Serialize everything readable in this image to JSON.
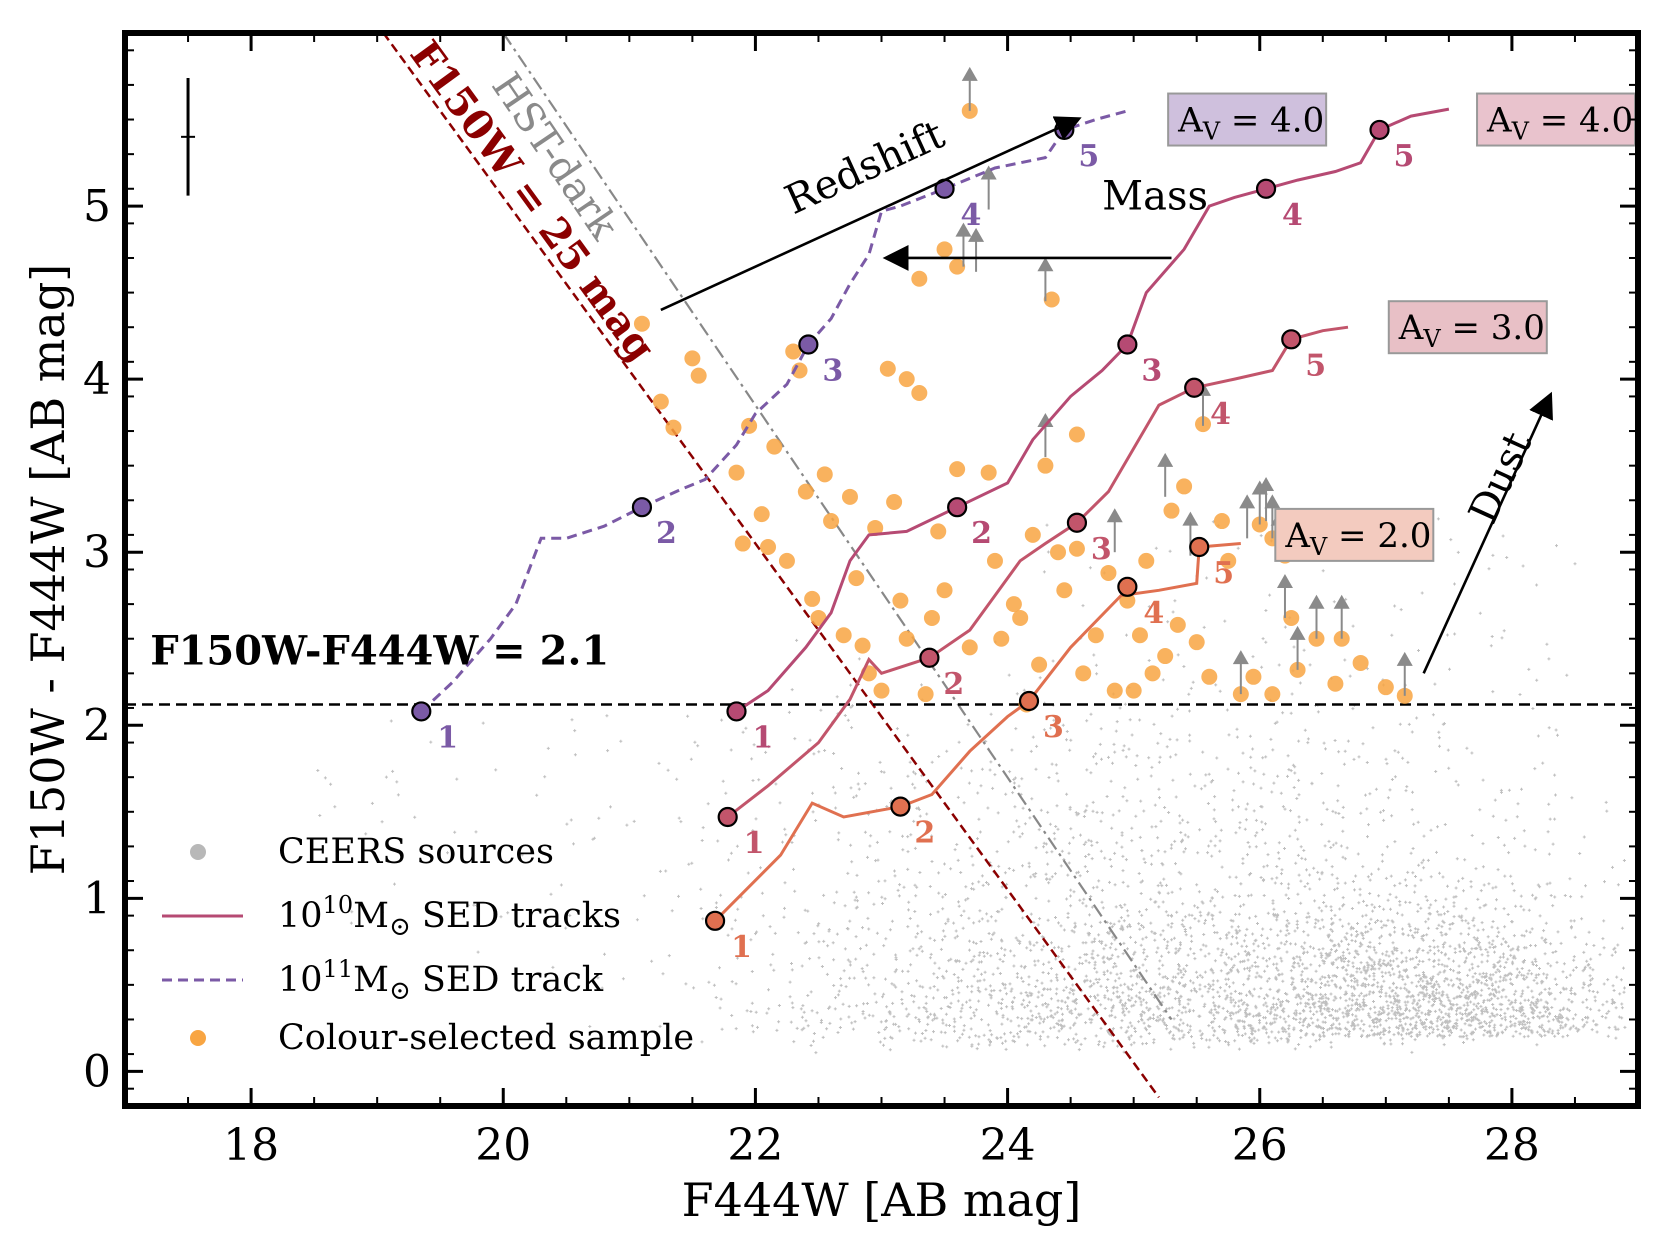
{
  "chart_data": {
    "type": "scatter",
    "xlabel": "F444W [AB mag]",
    "ylabel": "F150W - F444W [AB mag]",
    "xlim": [
      17,
      29
    ],
    "ylim": [
      -0.2,
      6.0
    ],
    "x_ticks": [
      18,
      20,
      22,
      24,
      26,
      28
    ],
    "y_ticks": [
      0,
      1,
      2,
      3,
      4,
      5
    ],
    "x_tick_labels": [
      "18",
      "20",
      "22",
      "24",
      "26",
      "28"
    ],
    "y_tick_labels": [
      "0",
      "1",
      "2",
      "3",
      "4",
      "5"
    ],
    "grid": false,
    "legend_position": "bottom-left",
    "legend": [
      {
        "label": "CEERS sources",
        "symbol": "grey-dot"
      },
      {
        "label_main": "10",
        "label_sup": "10",
        "label_rest": "M",
        "label_sub": "⊙",
        "label_tail": " SED tracks",
        "symbol": "solid-line"
      },
      {
        "label_main": "10",
        "label_sup": "11",
        "label_rest": "M",
        "label_sub": "⊙",
        "label_tail": " SED track",
        "symbol": "dashed-line"
      },
      {
        "label": "Colour-selected sample",
        "symbol": "orange-dot"
      }
    ],
    "colour_cut": {
      "y": 2.12,
      "label": "F150W-F444W = 2.1"
    },
    "f150_limit_line": {
      "label": "F150W = 25 mag",
      "points": [
        [
          19.05,
          6.0
        ],
        [
          25.2,
          -0.15
        ]
      ],
      "color": "#8b0000"
    },
    "hst_dark_line": {
      "label": "HST-dark",
      "points": [
        [
          20.0,
          6.0
        ],
        [
          25.3,
          0.3
        ]
      ],
      "color": "#888888"
    },
    "error_bar": {
      "x": 17.5,
      "y": 5.4,
      "yerr": 0.34
    },
    "arrows": [
      {
        "label": "Redshift",
        "from": [
          21.25,
          4.4
        ],
        "to": [
          24.55,
          5.5
        ]
      },
      {
        "label": "Mass",
        "from": [
          25.3,
          4.7
        ],
        "to": [
          23.05,
          4.7
        ]
      },
      {
        "label": "Dust",
        "from": [
          27.3,
          2.3
        ],
        "to": [
          28.3,
          3.9
        ]
      }
    ],
    "tracks": [
      {
        "mass": "1e11",
        "av_label": "A_V = 4.0",
        "color": "#7b5aa6",
        "dash": true,
        "line": [
          [
            19.35,
            2.08
          ],
          [
            19.6,
            2.25
          ],
          [
            19.9,
            2.5
          ],
          [
            20.1,
            2.7
          ],
          [
            20.3,
            3.08
          ],
          [
            20.5,
            3.08
          ],
          [
            20.8,
            3.15
          ],
          [
            21.1,
            3.26
          ],
          [
            21.4,
            3.36
          ],
          [
            21.6,
            3.42
          ],
          [
            21.85,
            3.62
          ],
          [
            22.0,
            3.8
          ],
          [
            22.25,
            3.97
          ],
          [
            22.42,
            4.2
          ],
          [
            22.6,
            4.35
          ],
          [
            22.75,
            4.55
          ],
          [
            22.9,
            4.72
          ],
          [
            23.0,
            4.97
          ],
          [
            23.15,
            5.0
          ],
          [
            23.5,
            5.1
          ],
          [
            23.9,
            5.22
          ],
          [
            24.1,
            5.25
          ],
          [
            24.3,
            5.28
          ],
          [
            24.45,
            5.44
          ],
          [
            24.7,
            5.5
          ],
          [
            24.95,
            5.55
          ]
        ],
        "markers": [
          {
            "x": 19.35,
            "y": 2.08,
            "n": "1"
          },
          {
            "x": 21.1,
            "y": 3.26,
            "n": "2"
          },
          {
            "x": 22.42,
            "y": 4.2,
            "n": "3"
          },
          {
            "x": 23.5,
            "y": 5.1,
            "n": "4"
          },
          {
            "x": 24.45,
            "y": 5.44,
            "n": "5"
          }
        ]
      },
      {
        "mass": "1e10",
        "av_label": "A_V = 4.0",
        "color": "#b64a73",
        "dash": false,
        "line": [
          [
            21.85,
            2.08
          ],
          [
            22.1,
            2.2
          ],
          [
            22.4,
            2.45
          ],
          [
            22.6,
            2.65
          ],
          [
            22.75,
            2.95
          ],
          [
            22.9,
            3.1
          ],
          [
            23.2,
            3.12
          ],
          [
            23.6,
            3.26
          ],
          [
            24.0,
            3.4
          ],
          [
            24.2,
            3.65
          ],
          [
            24.5,
            3.9
          ],
          [
            24.75,
            4.05
          ],
          [
            24.95,
            4.2
          ],
          [
            25.1,
            4.5
          ],
          [
            25.4,
            4.75
          ],
          [
            25.6,
            5.0
          ],
          [
            25.8,
            5.05
          ],
          [
            26.05,
            5.1
          ],
          [
            26.3,
            5.15
          ],
          [
            26.6,
            5.2
          ],
          [
            26.8,
            5.25
          ],
          [
            26.95,
            5.44
          ],
          [
            27.2,
            5.52
          ],
          [
            27.5,
            5.56
          ]
        ],
        "markers": [
          {
            "x": 21.85,
            "y": 2.08,
            "n": "1"
          },
          {
            "x": 23.6,
            "y": 3.26,
            "n": "2"
          },
          {
            "x": 24.95,
            "y": 4.2,
            "n": "3"
          },
          {
            "x": 26.05,
            "y": 5.1,
            "n": "4"
          },
          {
            "x": 26.95,
            "y": 5.44,
            "n": "5"
          }
        ]
      },
      {
        "mass": "1e10",
        "av_label": "A_V = 3.0",
        "color": "#c2556b",
        "dash": false,
        "line": [
          [
            21.78,
            1.47
          ],
          [
            22.1,
            1.65
          ],
          [
            22.5,
            1.9
          ],
          [
            22.75,
            2.15
          ],
          [
            22.9,
            2.38
          ],
          [
            23.0,
            2.3
          ],
          [
            23.38,
            2.39
          ],
          [
            23.7,
            2.55
          ],
          [
            23.9,
            2.75
          ],
          [
            24.1,
            2.95
          ],
          [
            24.3,
            3.05
          ],
          [
            24.55,
            3.17
          ],
          [
            24.8,
            3.35
          ],
          [
            25.0,
            3.6
          ],
          [
            25.2,
            3.85
          ],
          [
            25.48,
            3.95
          ],
          [
            25.8,
            4.0
          ],
          [
            26.1,
            4.05
          ],
          [
            26.25,
            4.23
          ],
          [
            26.5,
            4.28
          ],
          [
            26.7,
            4.3
          ]
        ],
        "markers": [
          {
            "x": 21.78,
            "y": 1.47,
            "n": "1"
          },
          {
            "x": 23.38,
            "y": 2.39,
            "n": "2"
          },
          {
            "x": 24.55,
            "y": 3.17,
            "n": "3"
          },
          {
            "x": 25.48,
            "y": 3.95,
            "n": "4"
          },
          {
            "x": 26.25,
            "y": 4.23,
            "n": "5"
          }
        ]
      },
      {
        "mass": "1e10",
        "av_label": "A_V = 2.0",
        "color": "#e07050",
        "dash": false,
        "line": [
          [
            21.68,
            0.87
          ],
          [
            22.2,
            1.25
          ],
          [
            22.45,
            1.55
          ],
          [
            22.7,
            1.47
          ],
          [
            23.15,
            1.53
          ],
          [
            23.4,
            1.6
          ],
          [
            23.7,
            1.85
          ],
          [
            24.0,
            2.05
          ],
          [
            24.17,
            2.14
          ],
          [
            24.5,
            2.45
          ],
          [
            24.9,
            2.75
          ],
          [
            25.2,
            2.78
          ],
          [
            25.5,
            2.82
          ],
          [
            25.52,
            3.03
          ],
          [
            25.85,
            3.05
          ]
        ],
        "markers": [
          {
            "x": 21.68,
            "y": 0.87,
            "n": "1"
          },
          {
            "x": 23.15,
            "y": 1.53,
            "n": "2"
          },
          {
            "x": 24.17,
            "y": 2.14,
            "n": "3"
          },
          {
            "x": 24.95,
            "y": 2.8,
            "n": "4"
          },
          {
            "x": 25.52,
            "y": 3.03,
            "n": "5"
          }
        ]
      }
    ],
    "av_labels": [
      {
        "text_main": "A",
        "text_sub": "V",
        "text_tail": " = 4.0",
        "x": 25.9,
        "y": 5.5,
        "color": "#cfc0dd"
      },
      {
        "text_main": "A",
        "text_sub": "V",
        "text_tail": " = 4.0",
        "x": 28.35,
        "y": 5.5,
        "color": "#e9c3cd"
      },
      {
        "text_main": "A",
        "text_sub": "V",
        "text_tail": " = 3.0",
        "x": 27.65,
        "y": 4.3,
        "color": "#e8c0c6"
      },
      {
        "text_main": "A",
        "text_sub": "V",
        "text_tail": " = 2.0",
        "x": 26.75,
        "y": 3.1,
        "color": "#f3cbbf"
      }
    ],
    "colour_selected_sample": [
      [
        21.1,
        4.32
      ],
      [
        21.25,
        3.87
      ],
      [
        21.35,
        3.72
      ],
      [
        21.5,
        4.12
      ],
      [
        21.55,
        4.02
      ],
      [
        21.85,
        3.46
      ],
      [
        21.95,
        3.73
      ],
      [
        22.05,
        3.22
      ],
      [
        22.1,
        3.03
      ],
      [
        22.15,
        3.61
      ],
      [
        22.3,
        4.16
      ],
      [
        22.35,
        4.05
      ],
      [
        22.4,
        3.35
      ],
      [
        22.45,
        2.73
      ],
      [
        22.6,
        3.18
      ],
      [
        22.7,
        2.52
      ],
      [
        22.85,
        2.46
      ],
      [
        22.9,
        2.3
      ],
      [
        22.95,
        3.14
      ],
      [
        23.05,
        4.06
      ],
      [
        23.1,
        3.29
      ],
      [
        23.2,
        4.0
      ],
      [
        23.3,
        3.92
      ],
      [
        23.3,
        4.58
      ],
      [
        23.5,
        4.75
      ],
      [
        23.6,
        4.65
      ],
      [
        23.7,
        5.55
      ],
      [
        23.15,
        2.72
      ],
      [
        23.2,
        2.5
      ],
      [
        23.35,
        2.18
      ],
      [
        23.5,
        2.78
      ],
      [
        23.6,
        3.48
      ],
      [
        23.7,
        2.45
      ],
      [
        23.85,
        3.46
      ],
      [
        23.95,
        2.5
      ],
      [
        24.1,
        2.62
      ],
      [
        24.2,
        3.1
      ],
      [
        24.3,
        3.5
      ],
      [
        24.35,
        4.46
      ],
      [
        24.45,
        2.78
      ],
      [
        24.55,
        3.02
      ],
      [
        24.6,
        2.3
      ],
      [
        24.7,
        2.52
      ],
      [
        24.8,
        2.88
      ],
      [
        24.85,
        2.2
      ],
      [
        24.95,
        2.72
      ],
      [
        25.05,
        2.52
      ],
      [
        25.15,
        2.3
      ],
      [
        25.25,
        2.4
      ],
      [
        25.35,
        2.58
      ],
      [
        25.4,
        3.38
      ],
      [
        25.5,
        2.48
      ],
      [
        25.55,
        3.74
      ],
      [
        25.6,
        2.28
      ],
      [
        25.7,
        3.18
      ],
      [
        25.85,
        2.18
      ],
      [
        25.95,
        2.28
      ],
      [
        26.0,
        3.16
      ],
      [
        26.1,
        3.08
      ],
      [
        26.2,
        2.98
      ],
      [
        26.25,
        2.62
      ],
      [
        26.3,
        2.32
      ],
      [
        26.45,
        2.5
      ],
      [
        26.6,
        2.24
      ],
      [
        26.65,
        2.5
      ],
      [
        26.8,
        2.36
      ],
      [
        27.0,
        2.22
      ],
      [
        27.15,
        2.17
      ],
      [
        23.0,
        2.2
      ],
      [
        22.8,
        2.85
      ],
      [
        23.45,
        3.12
      ],
      [
        23.9,
        2.95
      ],
      [
        24.05,
        2.7
      ],
      [
        24.25,
        2.35
      ],
      [
        24.4,
        3.0
      ],
      [
        25.1,
        2.95
      ],
      [
        25.3,
        3.24
      ],
      [
        25.75,
        2.95
      ],
      [
        22.55,
        3.45
      ],
      [
        22.75,
        3.32
      ],
      [
        22.25,
        2.95
      ],
      [
        22.5,
        2.62
      ],
      [
        21.9,
        3.05
      ],
      [
        23.4,
        2.62
      ],
      [
        24.15,
        2.12
      ],
      [
        24.55,
        3.68
      ],
      [
        25.0,
        2.2
      ],
      [
        26.1,
        2.18
      ]
    ],
    "upper_limits": [
      [
        23.7,
        5.55
      ],
      [
        23.85,
        4.98
      ],
      [
        23.65,
        4.65
      ],
      [
        23.75,
        4.62
      ],
      [
        24.3,
        4.45
      ],
      [
        24.3,
        3.55
      ],
      [
        25.25,
        3.32
      ],
      [
        25.55,
        3.73
      ],
      [
        25.45,
        2.98
      ],
      [
        25.9,
        3.08
      ],
      [
        26.0,
        3.16
      ],
      [
        26.05,
        3.18
      ],
      [
        26.1,
        3.08
      ],
      [
        26.15,
        2.98
      ],
      [
        26.2,
        2.62
      ],
      [
        26.3,
        2.32
      ],
      [
        26.45,
        2.5
      ],
      [
        26.65,
        2.5
      ],
      [
        27.15,
        2.17
      ],
      [
        25.85,
        2.18
      ],
      [
        24.85,
        3.0
      ]
    ],
    "ceers_sources_note": "dense grey background population"
  }
}
